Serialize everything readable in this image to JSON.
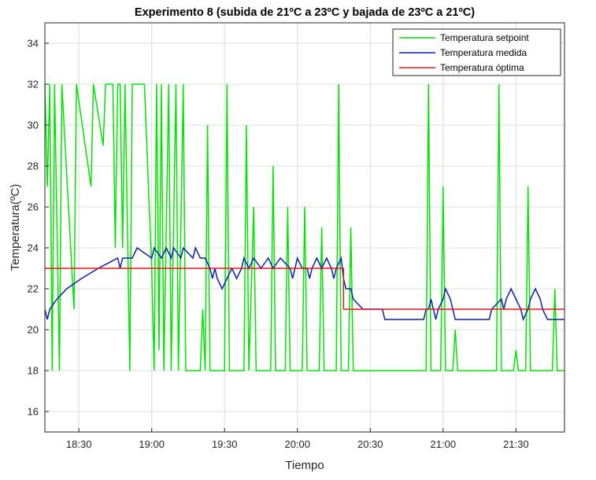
{
  "chart_data": {
    "type": "line",
    "title": "Experimento 8 (subida de 21ºC a 23ºC y bajada de 23ºC a 21ºC)",
    "xlabel": "Tiempo",
    "ylabel": "Temperatura(ºC)",
    "xlim": [
      "18:16",
      "21:50"
    ],
    "ylim": [
      15,
      35
    ],
    "x_ticks": [
      "18:30",
      "19:00",
      "19:30",
      "20:00",
      "20:30",
      "21:00",
      "21:30"
    ],
    "y_ticks": [
      16,
      18,
      20,
      22,
      24,
      26,
      28,
      30,
      32,
      34
    ],
    "grid": true,
    "legend_position": "top-right",
    "colors": {
      "setpoint": "#00e600",
      "medida": "#0a1fb0",
      "optima": "#e8161b",
      "grid": "#dcdcdc",
      "axis": "#262626"
    },
    "series": [
      {
        "name": "Temperatura setpoint",
        "color": "#00e600",
        "points": [
          [
            "18:16",
            32
          ],
          [
            "18:17",
            27
          ],
          [
            "18:18",
            32
          ],
          [
            "18:19",
            18
          ],
          [
            "18:20",
            32
          ],
          [
            "18:22",
            18
          ],
          [
            "18:23",
            32
          ],
          [
            "18:28",
            21
          ],
          [
            "18:29",
            32
          ],
          [
            "18:35",
            27
          ],
          [
            "18:36",
            32
          ],
          [
            "18:40",
            29
          ],
          [
            "18:41",
            32
          ],
          [
            "18:44",
            32
          ],
          [
            "18:45",
            24
          ],
          [
            "18:46",
            32
          ],
          [
            "18:47",
            32
          ],
          [
            "18:48",
            24
          ],
          [
            "18:49",
            32
          ],
          [
            "18:51",
            18
          ],
          [
            "18:52",
            32
          ],
          [
            "18:57",
            32
          ],
          [
            "18:58",
            29
          ],
          [
            "18:59",
            26
          ],
          [
            "19:00",
            23
          ],
          [
            "19:01",
            18
          ],
          [
            "19:02",
            32
          ],
          [
            "19:03",
            19
          ],
          [
            "19:04",
            32
          ],
          [
            "19:05",
            18
          ],
          [
            "19:07",
            32
          ],
          [
            "19:08",
            18
          ],
          [
            "19:10",
            32
          ],
          [
            "19:11",
            18
          ],
          [
            "19:13",
            32
          ],
          [
            "19:14",
            18
          ],
          [
            "19:20",
            18
          ],
          [
            "19:21",
            21
          ],
          [
            "19:22",
            18
          ],
          [
            "19:23",
            30
          ],
          [
            "19:24",
            18
          ],
          [
            "19:30",
            18
          ],
          [
            "19:31",
            32
          ],
          [
            "19:32",
            18
          ],
          [
            "19:38",
            18
          ],
          [
            "19:39",
            30
          ],
          [
            "19:40",
            18
          ],
          [
            "19:42",
            26
          ],
          [
            "19:43",
            18
          ],
          [
            "19:49",
            18
          ],
          [
            "19:50",
            28
          ],
          [
            "19:51",
            18
          ],
          [
            "19:55",
            18
          ],
          [
            "19:56",
            26
          ],
          [
            "19:57",
            18
          ],
          [
            "20:02",
            18
          ],
          [
            "20:03",
            26
          ],
          [
            "20:04",
            18
          ],
          [
            "20:09",
            18
          ],
          [
            "20:10",
            25
          ],
          [
            "20:11",
            18
          ],
          [
            "20:16",
            18
          ],
          [
            "20:17",
            32
          ],
          [
            "20:18",
            18
          ],
          [
            "20:21",
            18
          ],
          [
            "20:22",
            25
          ],
          [
            "20:23",
            18
          ],
          [
            "20:40",
            18
          ],
          [
            "20:53",
            18
          ],
          [
            "20:54",
            32
          ],
          [
            "20:55",
            18
          ],
          [
            "20:59",
            18
          ],
          [
            "21:00",
            27
          ],
          [
            "21:01",
            18
          ],
          [
            "21:04",
            18
          ],
          [
            "21:05",
            20
          ],
          [
            "21:06",
            18
          ],
          [
            "21:22",
            18
          ],
          [
            "21:23",
            32
          ],
          [
            "21:24",
            18
          ],
          [
            "21:29",
            18
          ],
          [
            "21:30",
            19
          ],
          [
            "21:31",
            18
          ],
          [
            "21:34",
            18
          ],
          [
            "21:35",
            27
          ],
          [
            "21:36",
            18
          ],
          [
            "21:45",
            18
          ],
          [
            "21:46",
            22
          ],
          [
            "21:47",
            18
          ],
          [
            "21:50",
            18
          ]
        ]
      },
      {
        "name": "Temperatura medida",
        "color": "#0a1fb0",
        "points": [
          [
            "18:16",
            21
          ],
          [
            "18:17",
            20.5
          ],
          [
            "18:18",
            21
          ],
          [
            "18:21",
            21.5
          ],
          [
            "18:25",
            22
          ],
          [
            "18:31",
            22.5
          ],
          [
            "18:38",
            23
          ],
          [
            "18:46",
            23.5
          ],
          [
            "18:47",
            23
          ],
          [
            "18:48",
            23.5
          ],
          [
            "18:52",
            23.5
          ],
          [
            "18:54",
            24
          ],
          [
            "19:00",
            23.5
          ],
          [
            "19:01",
            24
          ],
          [
            "19:04",
            23.5
          ],
          [
            "19:06",
            24
          ],
          [
            "19:08",
            23.5
          ],
          [
            "19:09",
            24
          ],
          [
            "19:12",
            23.5
          ],
          [
            "19:13",
            24
          ],
          [
            "19:17",
            23.5
          ],
          [
            "19:18",
            24
          ],
          [
            "19:20",
            23.5
          ],
          [
            "19:22",
            23.5
          ],
          [
            "19:24",
            23
          ],
          [
            "19:25",
            22.5
          ],
          [
            "19:26",
            23
          ],
          [
            "19:27",
            22.5
          ],
          [
            "19:29",
            22
          ],
          [
            "19:31",
            22.5
          ],
          [
            "19:33",
            23
          ],
          [
            "19:35",
            22.5
          ],
          [
            "19:37",
            23
          ],
          [
            "19:38",
            23.5
          ],
          [
            "19:40",
            23
          ],
          [
            "19:42",
            23.5
          ],
          [
            "19:45",
            23
          ],
          [
            "19:48",
            23.5
          ],
          [
            "19:50",
            23
          ],
          [
            "19:53",
            23.5
          ],
          [
            "19:57",
            23
          ],
          [
            "19:58",
            22.5
          ],
          [
            "19:59",
            23
          ],
          [
            "20:00",
            23.5
          ],
          [
            "20:02",
            23
          ],
          [
            "20:04",
            23
          ],
          [
            "20:05",
            22.5
          ],
          [
            "20:06",
            23
          ],
          [
            "20:08",
            23.5
          ],
          [
            "20:10",
            23
          ],
          [
            "20:12",
            23.5
          ],
          [
            "20:14",
            23
          ],
          [
            "20:15",
            22.5
          ],
          [
            "20:16",
            23
          ],
          [
            "20:18",
            23.5
          ],
          [
            "20:19",
            22.5
          ],
          [
            "20:20",
            22
          ],
          [
            "20:22",
            22
          ],
          [
            "20:23",
            21.5
          ],
          [
            "20:27",
            21
          ],
          [
            "20:35",
            21
          ],
          [
            "20:36",
            20.5
          ],
          [
            "20:52",
            20.5
          ],
          [
            "20:53",
            21
          ],
          [
            "20:54",
            21
          ],
          [
            "20:55",
            21.5
          ],
          [
            "20:56",
            21
          ],
          [
            "20:57",
            20.5
          ],
          [
            "20:58",
            21
          ],
          [
            "21:00",
            21.5
          ],
          [
            "21:01",
            22
          ],
          [
            "21:03",
            21.5
          ],
          [
            "21:04",
            21
          ],
          [
            "21:05",
            20.5
          ],
          [
            "21:19",
            20.5
          ],
          [
            "21:20",
            21
          ],
          [
            "21:24",
            21.5
          ],
          [
            "21:25",
            21
          ],
          [
            "21:26",
            21.5
          ],
          [
            "21:28",
            22
          ],
          [
            "21:30",
            21.5
          ],
          [
            "21:32",
            21
          ],
          [
            "21:33",
            20.5
          ],
          [
            "21:35",
            21
          ],
          [
            "21:36",
            21.5
          ],
          [
            "21:38",
            22
          ],
          [
            "21:40",
            21.5
          ],
          [
            "21:41",
            21
          ],
          [
            "21:43",
            20.5
          ],
          [
            "21:50",
            20.5
          ]
        ]
      },
      {
        "name": "Temperatura óptima",
        "color": "#e8161b",
        "points": [
          [
            "18:16",
            23
          ],
          [
            "20:19",
            23
          ],
          [
            "20:19",
            21
          ],
          [
            "21:50",
            21
          ]
        ]
      }
    ]
  }
}
